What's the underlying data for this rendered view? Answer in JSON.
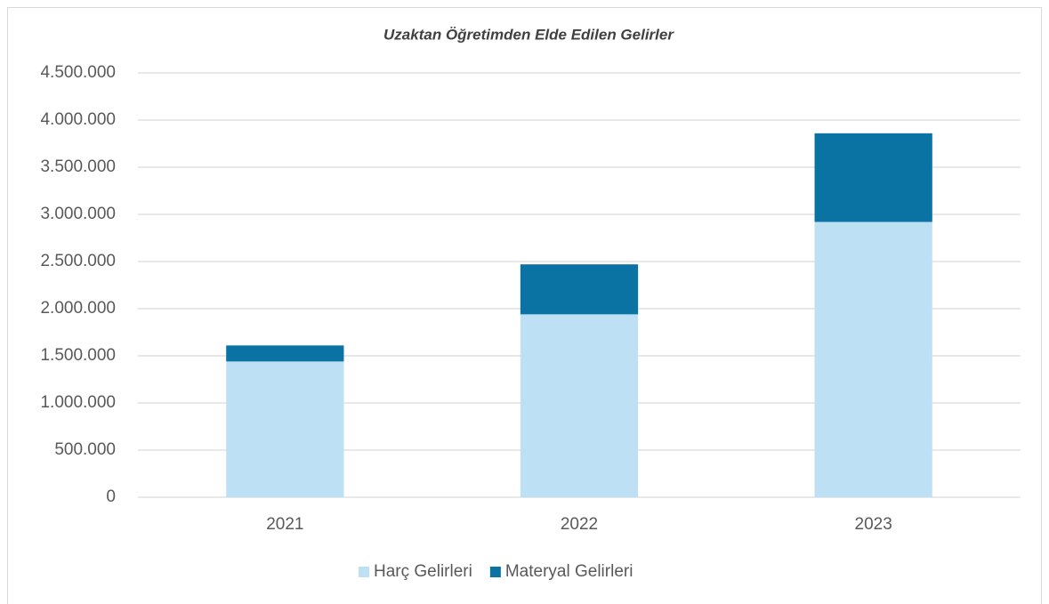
{
  "chart_data": {
    "type": "stacked-bar",
    "title": "Uzaktan Öğretimden Elde Edilen Gelirler",
    "categories": [
      "2021",
      "2022",
      "2023"
    ],
    "series": [
      {
        "name": "Harç Gelirleri",
        "color": "#bde0f5",
        "values": [
          1440000,
          1940000,
          2920000
        ]
      },
      {
        "name": "Materyal Gelirleri",
        "color": "#0a73a3",
        "values": [
          170000,
          530000,
          940000
        ]
      }
    ],
    "ylim": [
      0,
      4500000
    ],
    "yticks": [
      0,
      {
        "value": 500000,
        "label": "500.000"
      },
      {
        "value": 1000000,
        "label": "1.000.000"
      },
      {
        "value": 1500000,
        "label": "1.500.000"
      },
      {
        "value": 2000000,
        "label": "2.000.000"
      },
      {
        "value": 2500000,
        "label": "2.500.000"
      },
      {
        "value": 3000000,
        "label": "3.000.000"
      },
      {
        "value": 3500000,
        "label": "3.500.000"
      },
      {
        "value": 4000000,
        "label": "4.000.000"
      },
      {
        "value": 4500000,
        "label": "4.500.000"
      }
    ],
    "grid": true,
    "legend": "bottom"
  }
}
